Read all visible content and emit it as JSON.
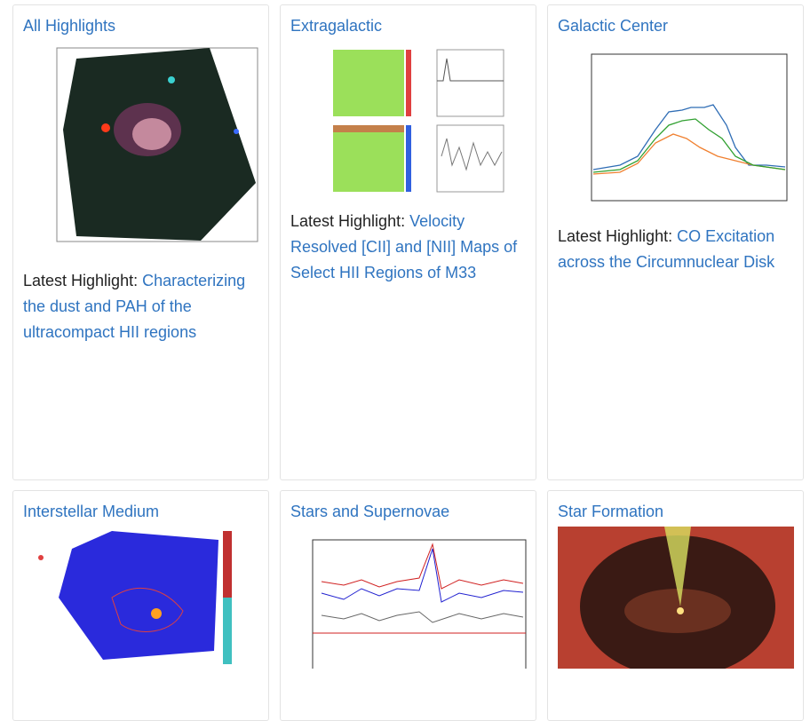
{
  "cards": [
    {
      "title": "All Highlights",
      "prefix": "Latest Highlight:",
      "link": "Characterizing the dust and PAH of the ultracompact HII regions"
    },
    {
      "title": "Extragalactic",
      "prefix": "Latest Highlight:",
      "link": "Velocity Resolved [CII] and [NII] Maps of Select HII Regions of M33"
    },
    {
      "title": "Galactic Center",
      "prefix": "Latest Highlight:",
      "link": "CO Excitation across the Circumnuclear Disk"
    },
    {
      "title": "Interstellar Medium"
    },
    {
      "title": "Stars and Supernovae"
    },
    {
      "title": "Star Formation"
    }
  ]
}
